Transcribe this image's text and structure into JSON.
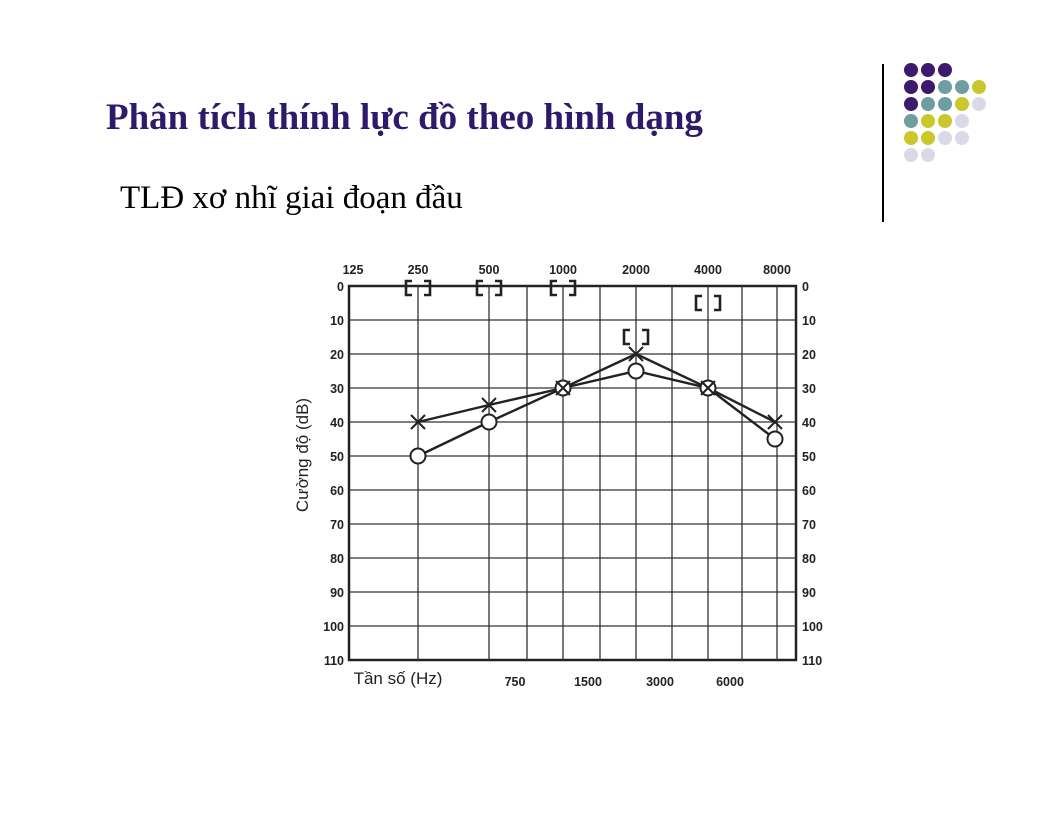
{
  "slide": {
    "title": "Phân tích thính lực đồ theo hình dạng",
    "subtitle": "TLĐ xơ nhĩ giai đoạn đầu"
  },
  "decoration": {
    "colors": {
      "purple": "#3d1a6e",
      "teal": "#6f9ea0",
      "olive": "#c8c82a",
      "lavender": "#d9d9e8"
    },
    "dot_grid": [
      [
        "purple",
        "purple",
        "purple",
        null,
        null
      ],
      [
        "purple",
        "purple",
        "teal",
        "teal",
        "olive"
      ],
      [
        "purple",
        "teal",
        "teal",
        "olive",
        "lavender"
      ],
      [
        "teal",
        "olive",
        "olive",
        "lavender",
        null
      ],
      [
        "olive",
        "olive",
        "lavender",
        "lavender",
        null
      ],
      [
        "lavender",
        "lavender",
        null,
        null,
        null
      ]
    ]
  },
  "chart_data": {
    "type": "line",
    "top_frequency_labels": [
      "125",
      "250",
      "500",
      "1000",
      "2000",
      "4000",
      "8000"
    ],
    "bottom_frequency_labels": [
      "750",
      "1500",
      "3000",
      "6000"
    ],
    "x_label": "Tần số (Hz)",
    "y_label": "Cường độ (dB)",
    "y_ticks": [
      "0",
      "10",
      "20",
      "30",
      "40",
      "50",
      "60",
      "70",
      "80",
      "90",
      "100",
      "110"
    ],
    "ylim": [
      0,
      110
    ],
    "y_inverted": true,
    "series": [
      {
        "marker": "x",
        "x": [
          250,
          500,
          1000,
          2000,
          4000,
          8000
        ],
        "y": [
          40,
          35,
          30,
          20,
          30,
          40
        ]
      },
      {
        "marker": "o",
        "x": [
          250,
          500,
          1000,
          2000,
          4000,
          8000
        ],
        "y": [
          50,
          40,
          30,
          25,
          30,
          45
        ]
      },
      {
        "marker": "[ ]",
        "x": [
          250,
          500,
          1000,
          2000,
          4000
        ],
        "y": [
          0,
          0,
          0,
          15,
          5
        ]
      }
    ],
    "grid": true,
    "colors": {
      "line": "#222222",
      "grid": "#333333"
    }
  }
}
